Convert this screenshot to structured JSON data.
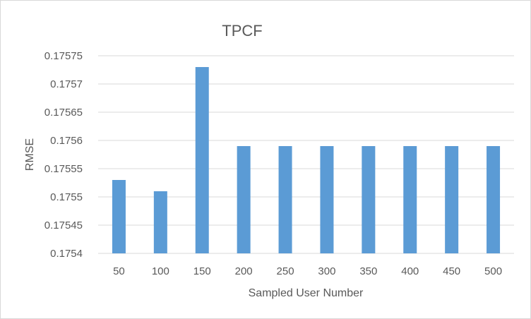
{
  "chart_data": {
    "type": "bar",
    "title": "TPCF",
    "xlabel": "Sampled User Number",
    "ylabel": "RMSE",
    "categories": [
      "50",
      "100",
      "150",
      "200",
      "250",
      "300",
      "350",
      "400",
      "450",
      "500"
    ],
    "values": [
      0.17553,
      0.17551,
      0.17573,
      0.17559,
      0.17559,
      0.17559,
      0.17559,
      0.17559,
      0.17559,
      0.17559
    ],
    "ylim": [
      0.1754,
      0.17575
    ],
    "yticks": [
      "0.1754",
      "0.17545",
      "0.1755",
      "0.17555",
      "0.1756",
      "0.17565",
      "0.1757",
      "0.17575"
    ],
    "grid": true,
    "bar_color": "#5b9bd5"
  }
}
